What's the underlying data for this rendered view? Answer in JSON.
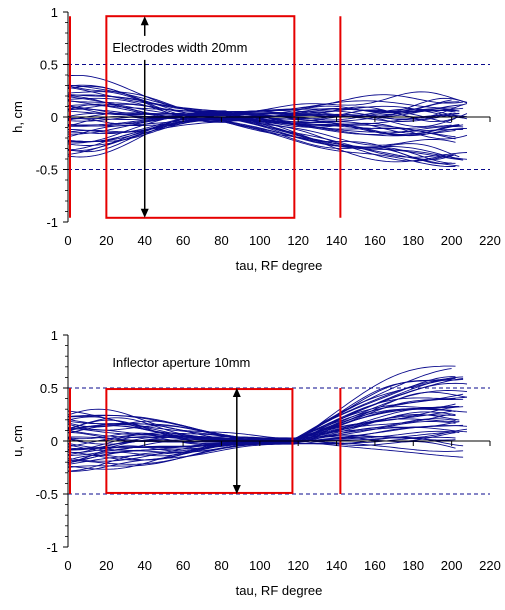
{
  "chart_data": [
    {
      "type": "line",
      "ylabel": "h, cm",
      "xlabel": "tau, RF degree",
      "xlim": [
        0,
        220
      ],
      "ylim": [
        -1,
        1
      ],
      "xticks": [
        0,
        20,
        40,
        60,
        80,
        100,
        120,
        140,
        160,
        180,
        200,
        220
      ],
      "xtick_labels": [
        "0",
        "20",
        "40",
        "60",
        "80",
        "100",
        "120",
        "140",
        "160",
        "180",
        "200",
        "220"
      ],
      "yticks": [
        -1,
        -0.5,
        0,
        0.5,
        1
      ],
      "ytick_labels": [
        "-1",
        "-0.5",
        "0",
        "0.5",
        "1"
      ],
      "dashed_lines_y": [
        0.5,
        -0.5
      ],
      "grid": false,
      "annotation": "Electrodes width 20mm",
      "arrow": {
        "x": 40,
        "y_from": 0.96,
        "y_to": -0.96
      },
      "box": {
        "x0": 20,
        "x1": 118,
        "y0": -0.96,
        "y1": 0.96
      },
      "vertical_lines": [
        0,
        142
      ],
      "trajectories": {
        "count": 45,
        "x_start": 0,
        "x_end": 210,
        "envelope_start": [
          -0.35,
          0.35
        ],
        "waist_x": 82,
        "waist_half_width": 0.06,
        "envelope_end": [
          -0.55,
          0.32
        ]
      },
      "colors": {
        "trajectory": "#0a0a8c",
        "frame": "#e60000",
        "dashed": "#0a0a8c"
      }
    },
    {
      "type": "line",
      "ylabel": "u, cm",
      "xlabel": "tau, RF degree",
      "xlim": [
        0,
        220
      ],
      "ylim": [
        -1,
        1
      ],
      "xticks": [
        0,
        20,
        40,
        60,
        80,
        100,
        120,
        140,
        160,
        180,
        200,
        220
      ],
      "xtick_labels": [
        "0",
        "20",
        "40",
        "60",
        "80",
        "100",
        "120",
        "140",
        "160",
        "180",
        "200",
        "220"
      ],
      "yticks": [
        -1,
        -0.5,
        0,
        0.5,
        1
      ],
      "ytick_labels": [
        "-1",
        "-0.5",
        "0",
        "0.5",
        "1"
      ],
      "dashed_lines_y": [
        0.5,
        -0.5
      ],
      "grid": false,
      "annotation": "Inflector aperture 10mm",
      "arrow": {
        "x": 88,
        "y_from": 0.5,
        "y_to": -0.5
      },
      "box": {
        "x0": 20,
        "x1": 117,
        "y0": -0.49,
        "y1": 0.49
      },
      "vertical_lines": [
        0,
        142
      ],
      "trajectories": {
        "count": 45,
        "x_start": 0,
        "x_end": 210,
        "envelope_start": [
          -0.28,
          0.28
        ],
        "waist_x": 118,
        "waist_half_width": 0.03,
        "envelope_end": [
          -0.15,
          0.75
        ]
      },
      "colors": {
        "trajectory": "#0a0a8c",
        "frame": "#e60000",
        "dashed": "#0a0a8c"
      }
    }
  ]
}
